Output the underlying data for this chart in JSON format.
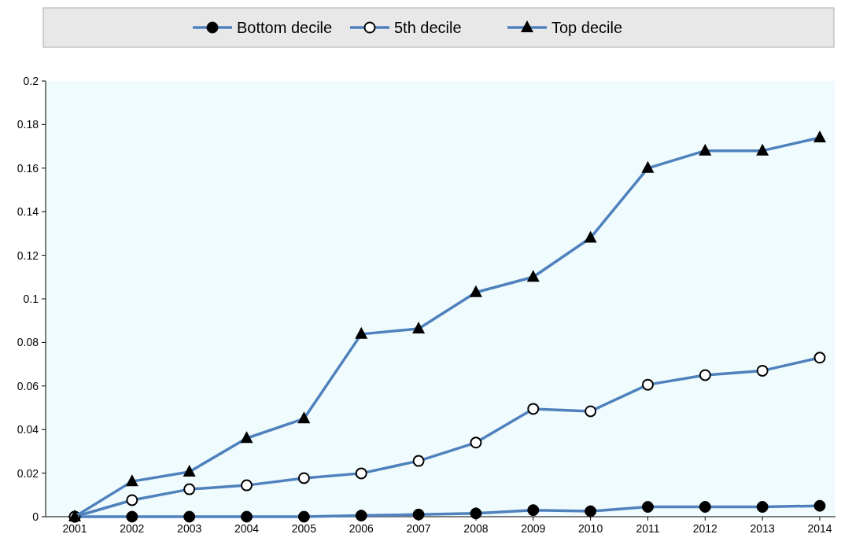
{
  "chart_data": {
    "type": "line",
    "categories": [
      "2001",
      "2002",
      "2003",
      "2004",
      "2005",
      "2006",
      "2007",
      "2008",
      "2009",
      "2010",
      "2011",
      "2012",
      "2013",
      "2014"
    ],
    "series": [
      {
        "name": "Bottom decile",
        "color": "#4f81bd",
        "marker": "circle",
        "values": [
          0,
          0,
          0,
          0,
          0,
          0.0005,
          0.001,
          0.0015,
          0.003,
          0.0025,
          0.0045,
          0.0045,
          0.0045,
          0.005
        ]
      },
      {
        "name": "5th decile",
        "color": "#4f81bd",
        "marker": "open-circle",
        "values": [
          0,
          0.0076,
          0.0126,
          0.0144,
          0.0177,
          0.0199,
          0.0256,
          0.034,
          0.0495,
          0.0484,
          0.0606,
          0.065,
          0.067,
          0.073
        ]
      },
      {
        "name": "Top decile",
        "color": "#4f81bd",
        "marker": "triangle",
        "values": [
          0,
          0.0162,
          0.0206,
          0.036,
          0.045,
          0.0838,
          0.0863,
          0.103,
          0.11,
          0.128,
          0.16,
          0.168,
          0.168,
          0.174
        ]
      }
    ],
    "ylim": [
      0,
      0.2
    ],
    "yticks": [
      0,
      0.02,
      0.04,
      0.06,
      0.08,
      0.1,
      0.12,
      0.14,
      0.16,
      0.18,
      0.2
    ],
    "grid": false,
    "legend": "top",
    "line_style": "solid"
  }
}
